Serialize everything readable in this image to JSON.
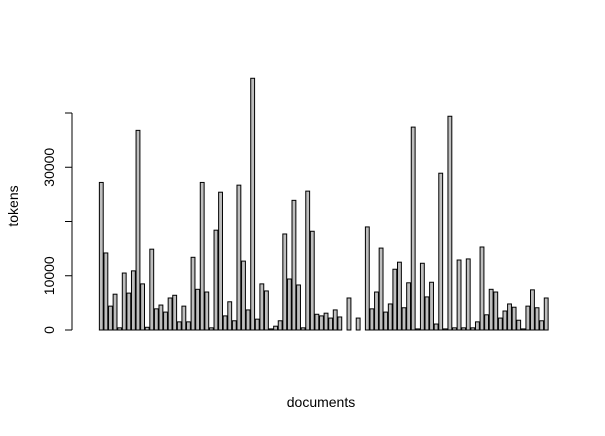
{
  "chart_data": {
    "type": "bar",
    "xlabel": "documents",
    "ylabel": "tokens",
    "values": [
      27200,
      14200,
      4400,
      6600,
      400,
      10500,
      6800,
      10900,
      36800,
      8500,
      500,
      14900,
      3900,
      4600,
      3300,
      5900,
      6400,
      1500,
      4400,
      1500,
      13400,
      7500,
      27200,
      7000,
      400,
      18400,
      25400,
      2600,
      5200,
      1700,
      26700,
      12700,
      3700,
      46400,
      2000,
      8500,
      7200,
      200,
      700,
      1700,
      17700,
      9400,
      23900,
      8300,
      400,
      25600,
      18200,
      2900,
      2600,
      3100,
      2200,
      3700,
      2400,
      0,
      5900,
      0,
      2200,
      0,
      19000,
      3900,
      7000,
      15100,
      3300,
      4800,
      11200,
      12500,
      4100,
      8700,
      37400,
      200,
      12300,
      6100,
      8800,
      1100,
      28900,
      200,
      39400,
      400,
      12900,
      400,
      13100,
      400,
      1500,
      15300,
      2800,
      7500,
      7000,
      2200,
      3500,
      4800,
      4200,
      1800,
      200,
      4400,
      7400,
      4100,
      1700,
      5900
    ],
    "color": "#bebebe",
    "ylim": [
      0,
      48000
    ],
    "yticks": [
      0,
      10000,
      30000
    ],
    "ytick_marks": [
      0,
      10000,
      20000,
      30000,
      40000
    ]
  }
}
